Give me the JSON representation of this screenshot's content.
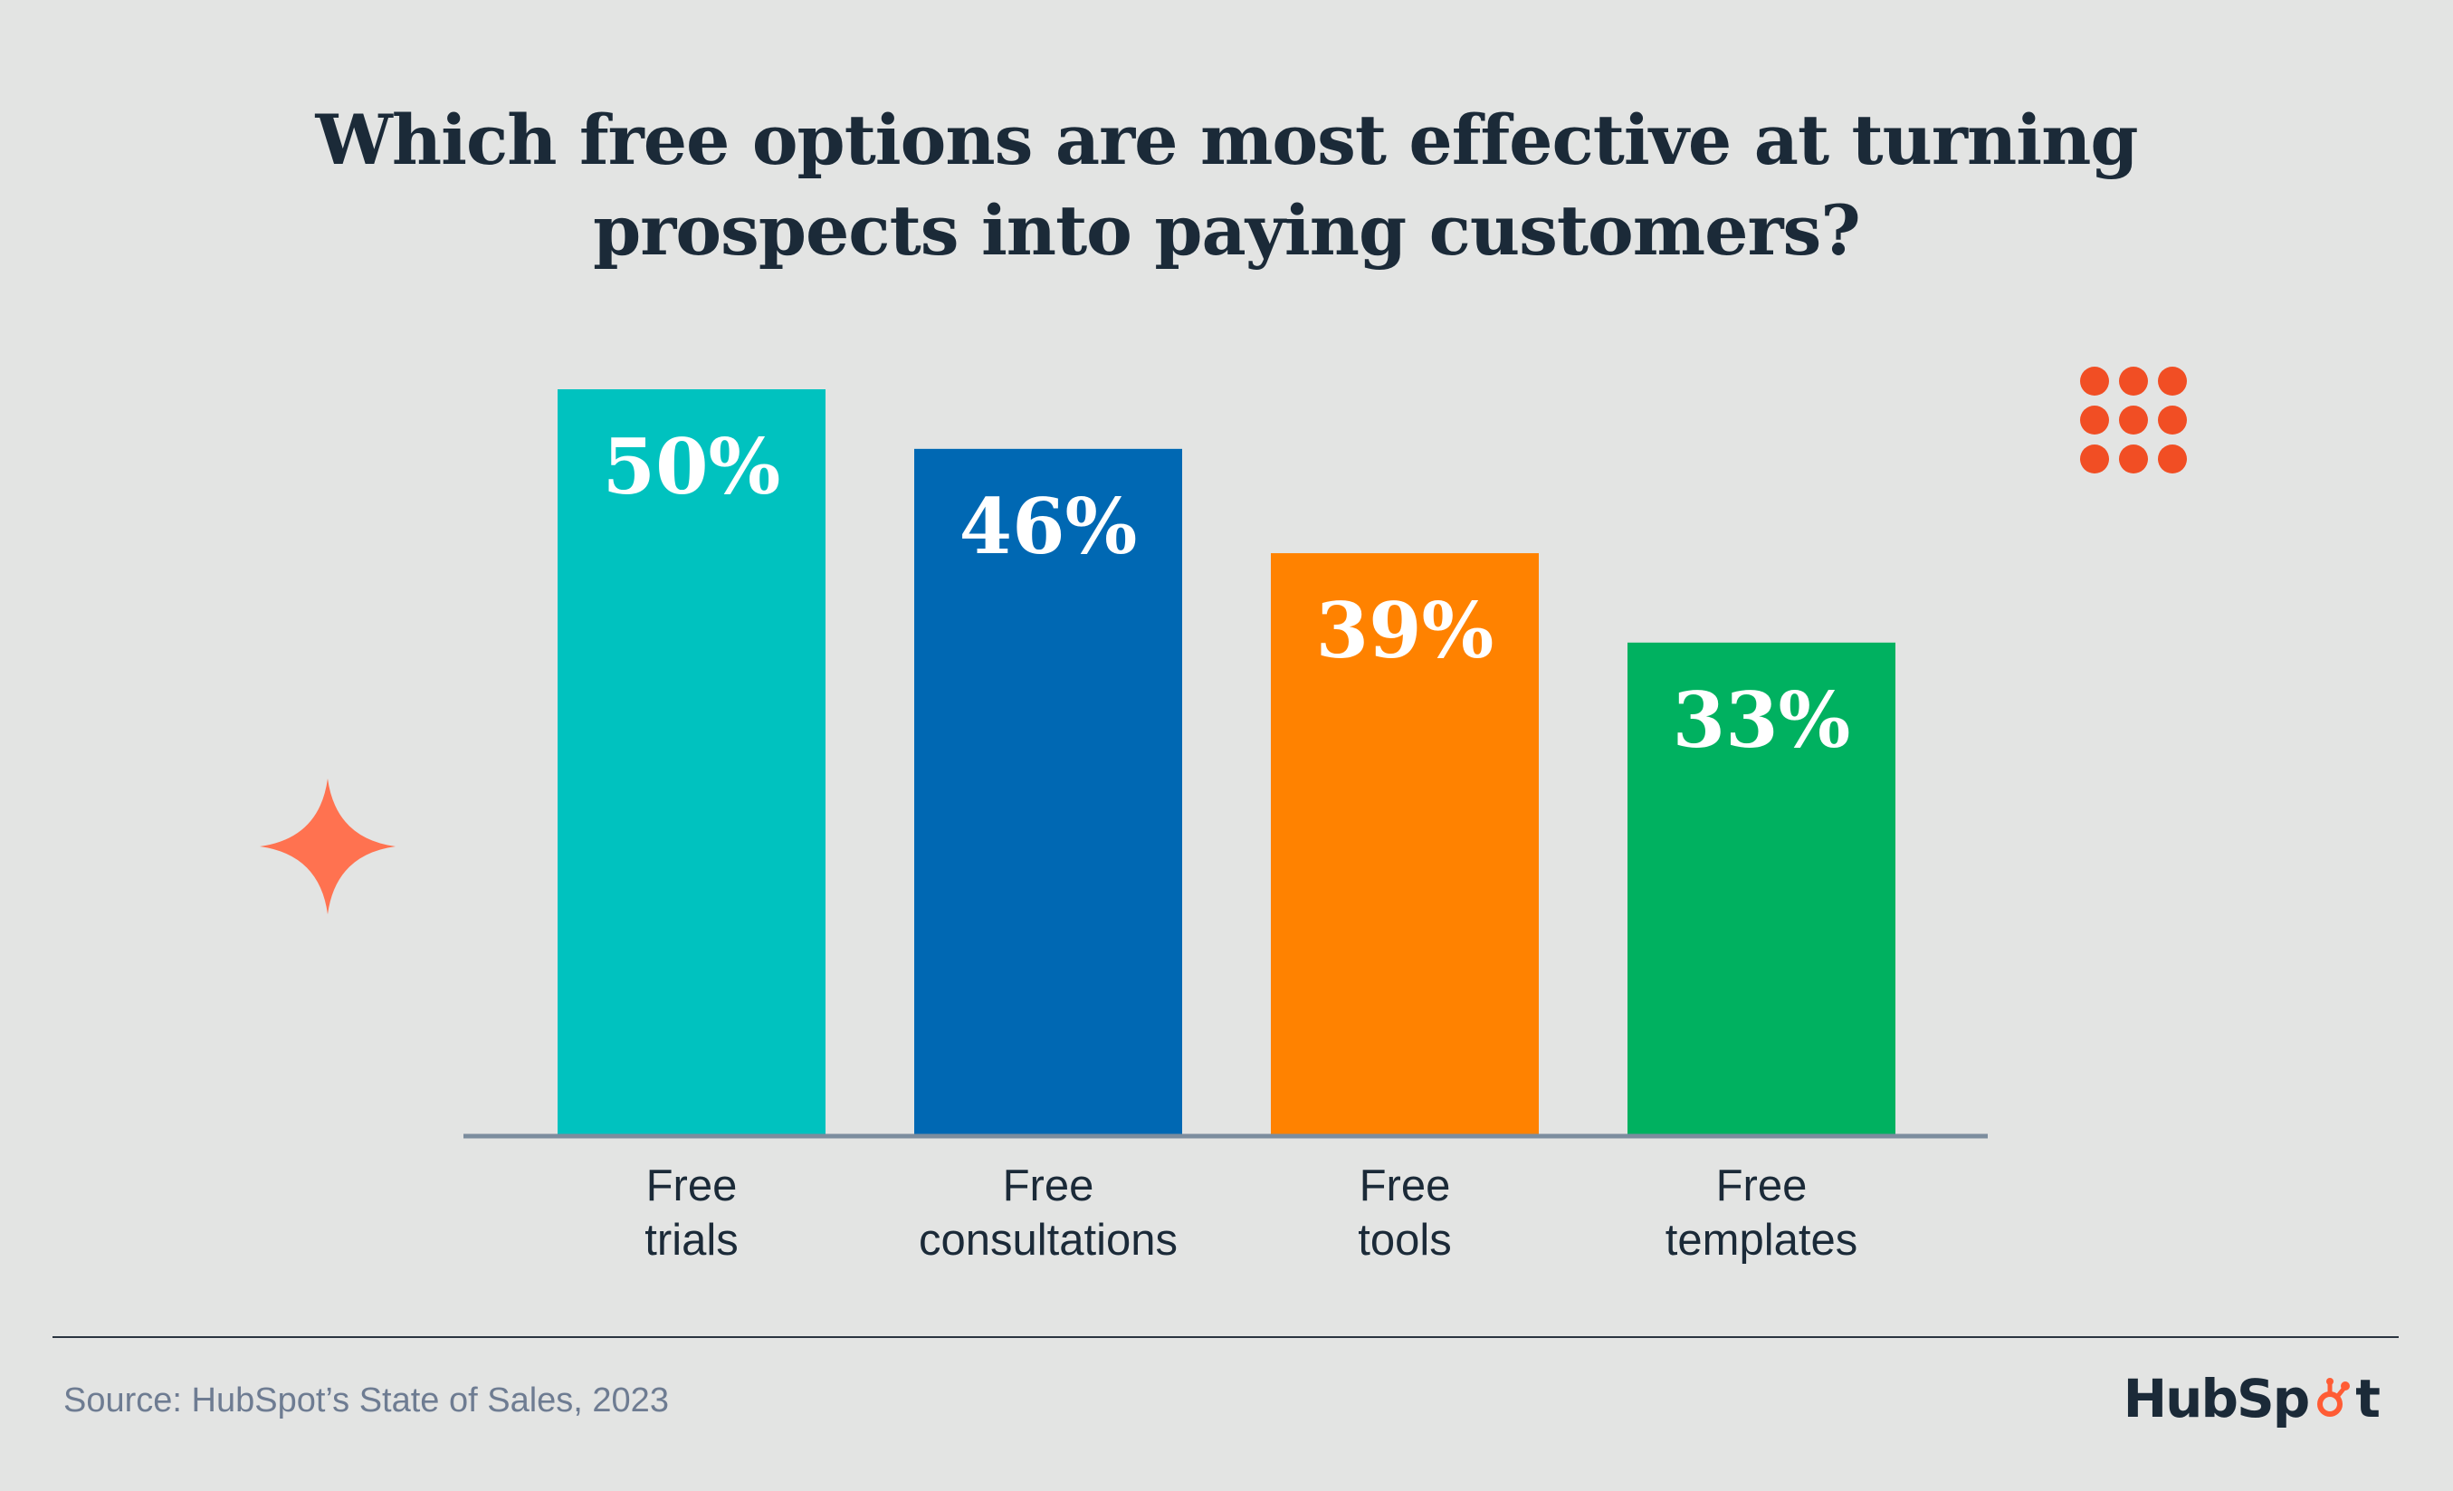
{
  "chart_data": {
    "type": "bar",
    "title_lines": [
      "Which free options are most effective at turning",
      "prospects into paying customers?"
    ],
    "categories": [
      [
        "Free",
        "trials"
      ],
      [
        "Free",
        "consultations"
      ],
      [
        "Free",
        "tools"
      ],
      [
        "Free",
        "templates"
      ]
    ],
    "values": [
      50,
      46,
      39,
      33
    ],
    "value_labels": [
      "50%",
      "46%",
      "39%",
      "33%"
    ],
    "colors": [
      "#00c2bf",
      "#0068b3",
      "#ff8200",
      "#00b160"
    ],
    "ylim": [
      0,
      50
    ],
    "grid": false,
    "legend": "none"
  },
  "footer": {
    "source": "Source: HubSpot’s State of Sales, 2023",
    "logo_left": "HubSp",
    "logo_right": "t"
  },
  "decorations": {
    "sparkle_icon_color": "#ff7250",
    "dot_grid_icon_color": "#f14e24",
    "axis_color": "#7c8d9e"
  }
}
